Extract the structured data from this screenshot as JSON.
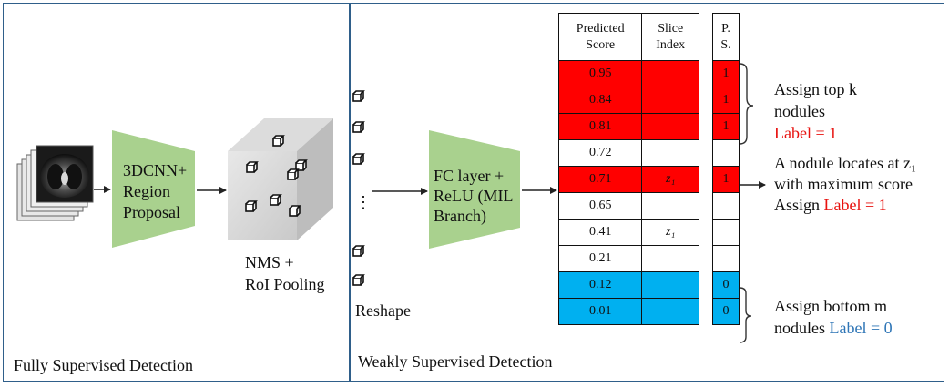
{
  "panels": {
    "left_caption": "Fully Supervised Detection",
    "right_caption": "Weakly Supervised Detection"
  },
  "stages": {
    "region_proposal": [
      "3DCNN+",
      "Region",
      "Proposal"
    ],
    "nms": [
      "NMS +",
      "RoI Pooling"
    ],
    "reshape": "Reshape",
    "ellipsis": "⋮",
    "fc_layer": [
      "FC layer +",
      "ReLU (MIL",
      "Branch)"
    ]
  },
  "table": {
    "headers": [
      [
        "Predicted",
        "Score"
      ],
      [
        "Slice",
        "Index"
      ]
    ],
    "ps_header": [
      "P.",
      "S."
    ],
    "rows": [
      {
        "score": "0.95",
        "slice": "",
        "ps": "1",
        "color": "red"
      },
      {
        "score": "0.84",
        "slice": "",
        "ps": "1",
        "color": "red"
      },
      {
        "score": "0.81",
        "slice": "",
        "ps": "1",
        "color": "red"
      },
      {
        "score": "0.72",
        "slice": "",
        "ps": "",
        "color": "none"
      },
      {
        "score": "0.71",
        "slice": "z₁",
        "ps": "1",
        "color": "red"
      },
      {
        "score": "0.65",
        "slice": "",
        "ps": "",
        "color": "none"
      },
      {
        "score": "0.41",
        "slice": "z₁",
        "ps": "",
        "color": "none"
      },
      {
        "score": "0.21",
        "slice": "",
        "ps": "",
        "color": "none"
      },
      {
        "score": "0.12",
        "slice": "",
        "ps": "0",
        "color": "blue"
      },
      {
        "score": "0.01",
        "slice": "",
        "ps": "0",
        "color": "blue"
      }
    ]
  },
  "annotations": {
    "top": {
      "line1": "Assign top k",
      "line2": "nodules",
      "label": "Label = 1"
    },
    "middle": {
      "line1": "A nodule locates at z₁",
      "line2": "with maximum score",
      "assign": "Assign ",
      "label": "Label = 1"
    },
    "bottom": {
      "line1": "Assign bottom m",
      "line2": "nodules ",
      "label": "Label = 0"
    }
  },
  "colors": {
    "frame": "#2f5f8a",
    "green": "#a9d18e",
    "red": "#ff0000",
    "blue": "#00b0f0",
    "label_red": "#e8120f",
    "label_blue": "#2e75b6"
  }
}
